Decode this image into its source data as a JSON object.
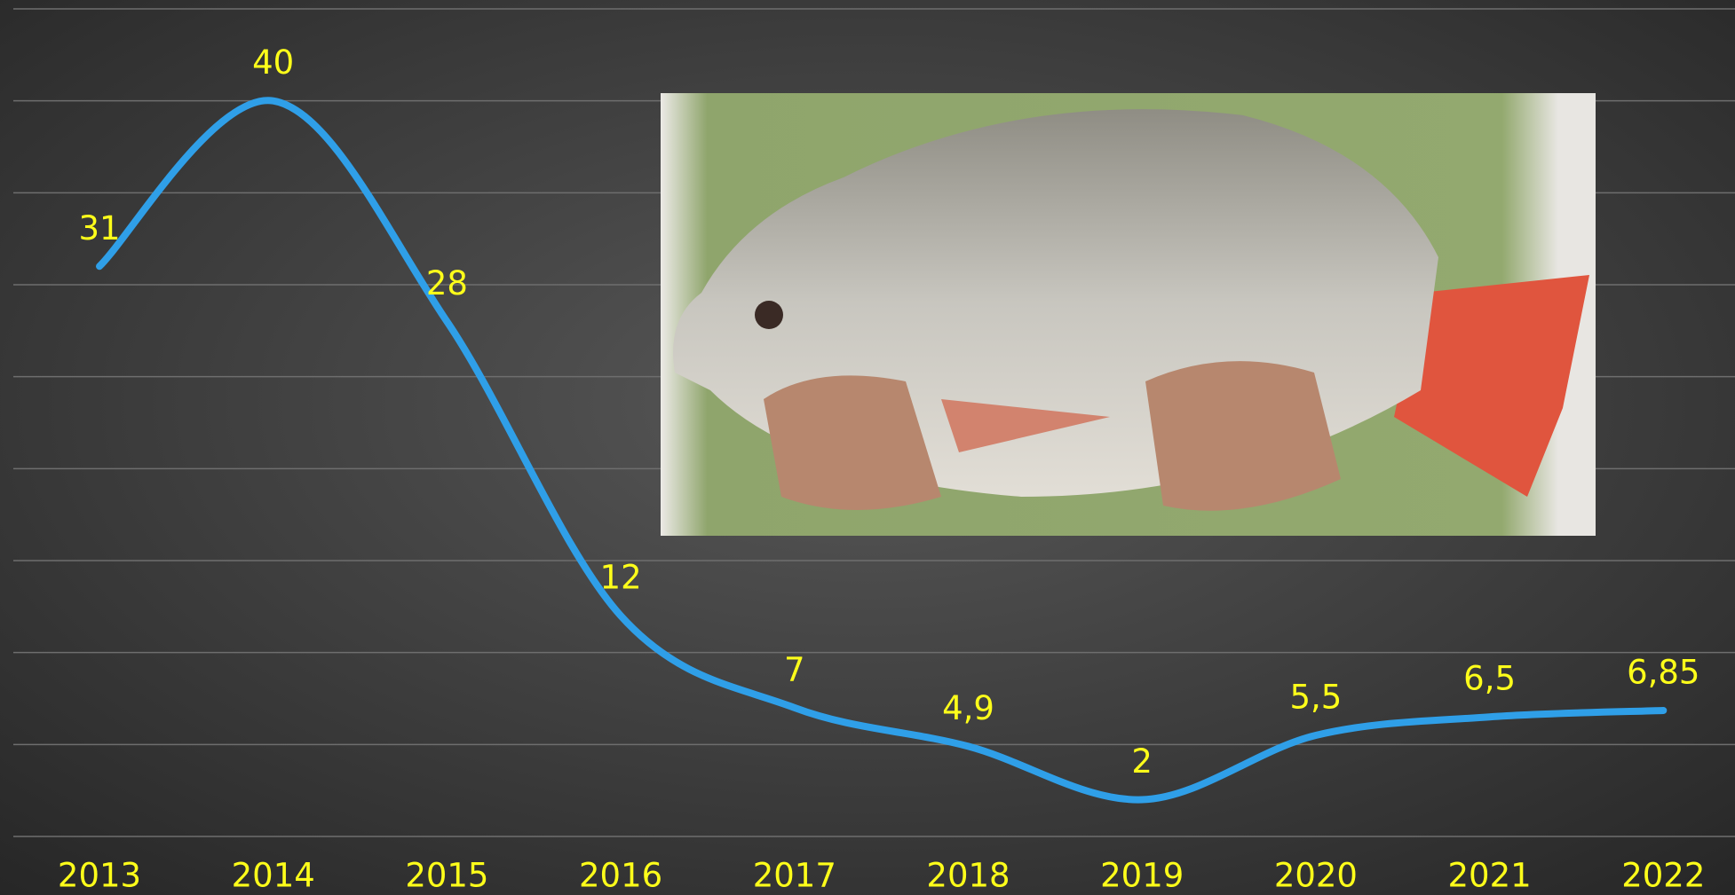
{
  "chart_data": {
    "type": "line",
    "categories": [
      "2013",
      "2014",
      "2015",
      "2016",
      "2017",
      "2018",
      "2019",
      "2020",
      "2021",
      "2022"
    ],
    "values": [
      31,
      40,
      28,
      12,
      7,
      4.9,
      2,
      5.5,
      6.5,
      6.85
    ],
    "value_labels": [
      "31",
      "40",
      "28",
      "12",
      "7",
      "4,9",
      "2",
      "5,5",
      "6,5",
      "6,85"
    ],
    "color": "#2f9fe8",
    "ylim": [
      0,
      45
    ],
    "yticks": [
      0,
      5,
      10,
      15,
      20,
      25,
      30,
      35,
      40,
      45
    ],
    "grid": true,
    "show_ytick_labels": false
  }
}
